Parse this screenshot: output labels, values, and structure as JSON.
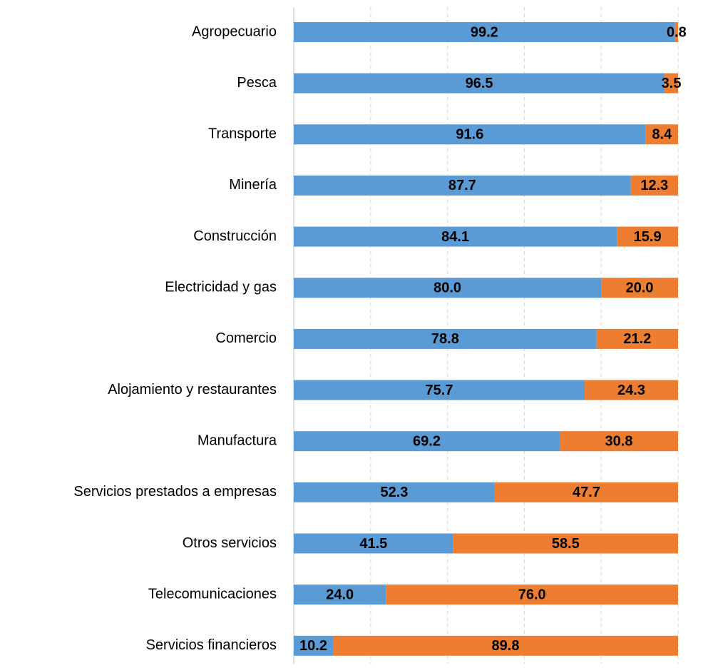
{
  "chart_data": {
    "type": "stacked_barh",
    "categories": [
      "Agropecuario",
      "Pesca",
      "Transporte",
      "Minería",
      "Construcción",
      "Electricidad y gas",
      "Comercio",
      "Alojamiento y restaurantes",
      "Manufactura",
      "Servicios  prestados a empresas",
      "Otros servicios",
      "Telecomunicaciones",
      "Servicios financieros"
    ],
    "series": [
      {
        "color": "#5b9bd5",
        "values": [
          99.2,
          96.5,
          91.6,
          87.7,
          84.1,
          80.0,
          78.8,
          75.7,
          69.2,
          52.3,
          41.5,
          24.0,
          10.2
        ],
        "value_labels": [
          "99.2",
          "96.5",
          "91.6",
          "87.7",
          "84.1",
          "80.0",
          "78.8",
          "75.7",
          "69.2",
          "52.3",
          "41.5",
          "24.0",
          "10.2"
        ]
      },
      {
        "color": "#ed7d31",
        "values": [
          0.8,
          3.5,
          8.4,
          12.3,
          15.9,
          20.0,
          21.2,
          24.3,
          30.8,
          47.7,
          58.5,
          76.0,
          89.8
        ],
        "value_labels": [
          "0.8",
          "3.5",
          "8.4",
          "12.3",
          "15.9",
          "20.0",
          "21.2",
          "24.3",
          "30.8",
          "47.7",
          "58.5",
          "76.0",
          "89.8"
        ]
      }
    ],
    "xlim": [
      0,
      100
    ],
    "xticks": [
      0,
      20,
      40,
      60,
      80,
      100
    ],
    "grid": true
  }
}
